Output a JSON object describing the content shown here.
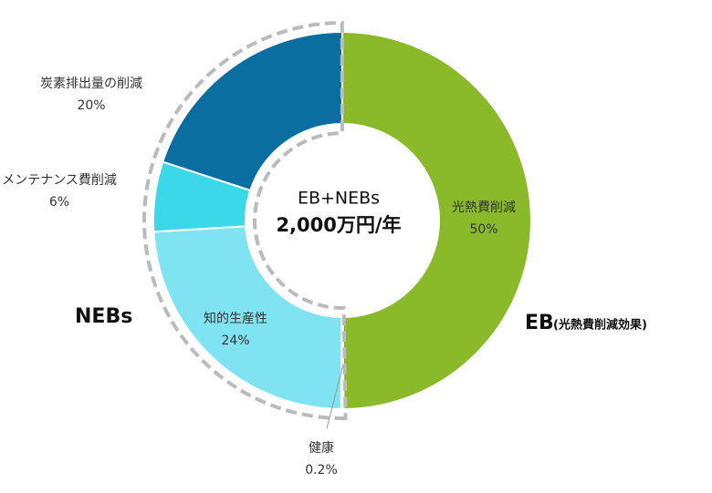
{
  "chart_data": {
    "type": "donut",
    "categories": [
      "光熱費削減",
      "健康",
      "知的生産性",
      "メンテナンス費削減",
      "炭素排出量の削減"
    ],
    "values": [
      50,
      0.2,
      24,
      6,
      20
    ],
    "value_labels": [
      "50%",
      "0.2%",
      "24%",
      "6%",
      "20%"
    ],
    "colors": [
      "#8aba2a",
      "#b8ecf5",
      "#7fe3f2",
      "#3ad8e8",
      "#0a6fa0"
    ],
    "center_title": "EB+NEBs",
    "center_subtitle": "2,000万円/年",
    "annotations": [
      "NEBs",
      "EB",
      "(光熱費削減効果)"
    ]
  }
}
